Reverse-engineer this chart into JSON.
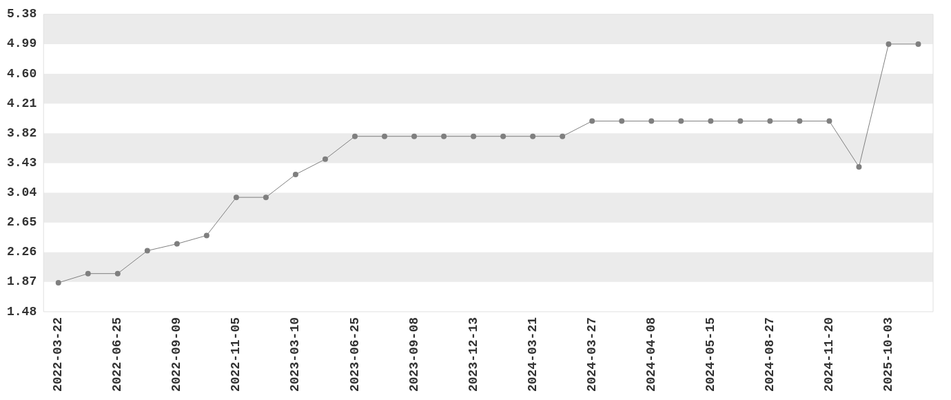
{
  "chart_data": {
    "type": "line",
    "categories": [
      "2022-03-22",
      null,
      "2022-06-25",
      null,
      "2022-09-09",
      null,
      "2022-11-05",
      null,
      "2023-03-10",
      null,
      "2023-06-25",
      null,
      "2023-09-08",
      null,
      "2023-12-13",
      null,
      "2024-03-21",
      null,
      "2024-03-27",
      null,
      "2024-04-08",
      null,
      "2024-05-15",
      null,
      "2024-08-27",
      null,
      "2024-11-20",
      null,
      "2025-10-03",
      null
    ],
    "series": [
      {
        "color": "#7f7f7f",
        "values": [
          1.86,
          1.98,
          1.98,
          2.28,
          2.37,
          2.48,
          2.98,
          2.98,
          3.28,
          3.48,
          3.78,
          3.78,
          3.78,
          3.78,
          3.78,
          3.78,
          3.78,
          3.78,
          3.98,
          3.98,
          3.98,
          3.98,
          3.98,
          3.98,
          3.98,
          3.98,
          3.98,
          3.38,
          4.99,
          4.99
        ]
      }
    ],
    "ylim": [
      1.48,
      5.38
    ],
    "yticks": [
      1.48,
      1.87,
      2.26,
      2.65,
      3.04,
      3.43,
      3.82,
      4.21,
      {
        "value": 4.6,
        "label": "4.60"
      },
      4.99,
      5.38
    ],
    "bands": [
      {
        "axis": "y",
        "from": 1.87,
        "to": 2.26,
        "color": "#ebebeb"
      },
      {
        "axis": "y",
        "from": 2.65,
        "to": 3.04,
        "color": "#ebebeb"
      },
      {
        "axis": "y",
        "from": 3.43,
        "to": 3.82,
        "color": "#ebebeb"
      },
      {
        "axis": "y",
        "from": 4.21,
        "to": 4.6,
        "color": "#ebebeb"
      },
      {
        "axis": "y",
        "from": 4.99,
        "to": 5.38,
        "color": "#ebebeb"
      }
    ],
    "grid": false,
    "legend": false,
    "marker": "circle",
    "line_style": "solid"
  }
}
